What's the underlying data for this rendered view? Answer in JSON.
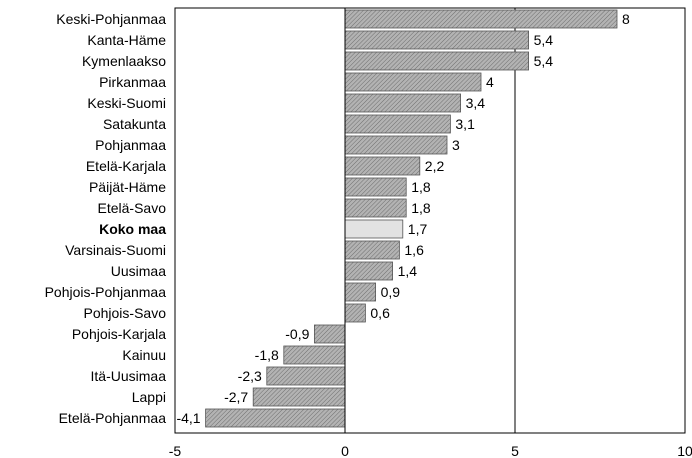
{
  "chart_data": {
    "type": "bar",
    "orientation": "horizontal",
    "title": "",
    "xlabel": "",
    "ylabel": "",
    "xlim": [
      -5,
      10
    ],
    "xticks": [
      -5,
      0,
      5,
      10
    ],
    "xtick_labels": [
      "-5",
      "0",
      "5",
      "10"
    ],
    "grid": "vertical lines at -5, 0 and 5",
    "legend": "none",
    "highlight_category": "Koko maa",
    "colors": {
      "bar": "#a9a9a9",
      "highlight_bar": "#e2e2e2",
      "axis": "#000000"
    },
    "categories": [
      "Keski-Pohjanmaa",
      "Kanta-Häme",
      "Kymenlaakso",
      "Pirkanmaa",
      "Keski-Suomi",
      "Satakunta",
      "Pohjanmaa",
      "Etelä-Karjala",
      "Päijät-Häme",
      "Etelä-Savo",
      "Koko maa",
      "Varsinais-Suomi",
      "Uusimaa",
      "Pohjois-Pohjanmaa",
      "Pohjois-Savo",
      "Pohjois-Karjala",
      "Kainuu",
      "Itä-Uusimaa",
      "Lappi",
      "Etelä-Pohjanmaa"
    ],
    "values": [
      8,
      5.4,
      5.4,
      4,
      3.4,
      3.1,
      3,
      2.2,
      1.8,
      1.8,
      1.7,
      1.6,
      1.4,
      0.9,
      0.6,
      -0.9,
      -1.8,
      -2.3,
      -2.7,
      -4.1
    ],
    "value_labels": [
      "8",
      "5,4",
      "5,4",
      "4",
      "3,4",
      "3,1",
      "3",
      "2,2",
      "1,8",
      "1,8",
      "1,7",
      "1,6",
      "1,4",
      "0,9",
      "0,6",
      "-0,9",
      "-1,8",
      "-2,3",
      "-2,7",
      "-4,1"
    ]
  }
}
